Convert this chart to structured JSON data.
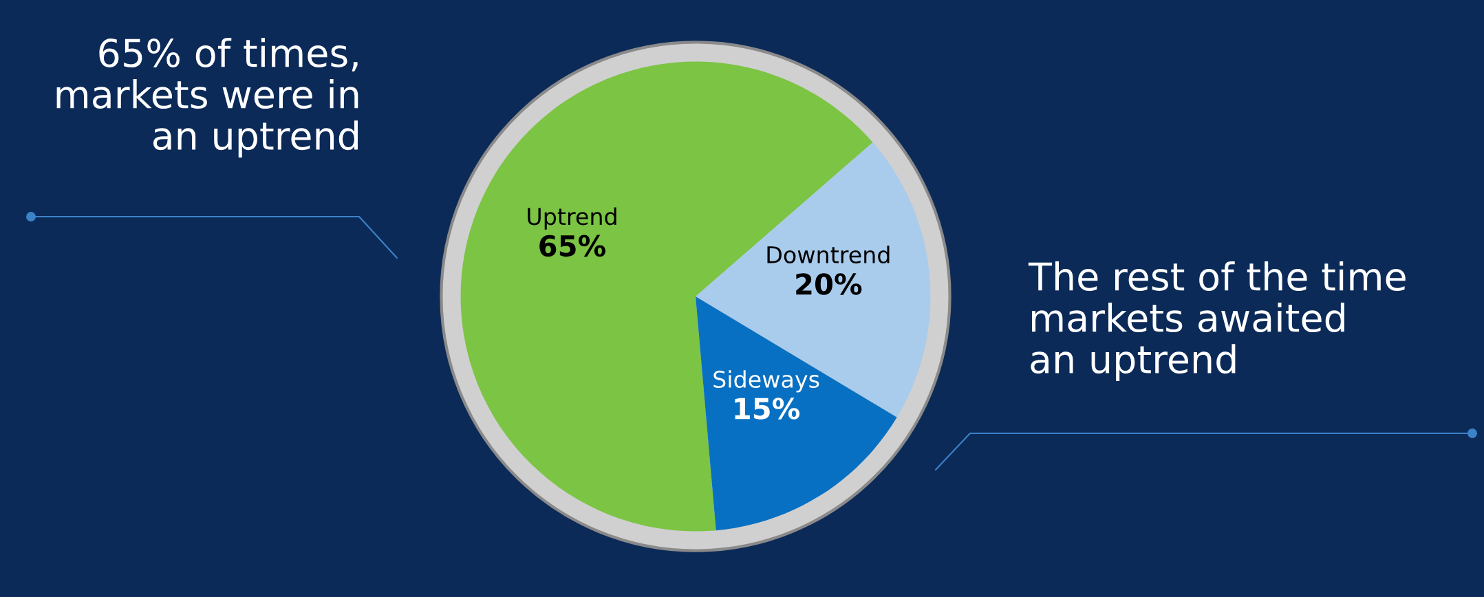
{
  "chart_data": {
    "type": "pie",
    "categories": [
      "Uptrend",
      "Downtrend",
      "Sideways"
    ],
    "values": [
      65,
      20,
      15
    ],
    "colors": [
      "#7cc444",
      "#a9cbec",
      "#0870c2"
    ],
    "value_labels": [
      "65%",
      "20%",
      "15%"
    ],
    "annotations": [
      "65% of times,\nmarkets were in\nan uptrend",
      "The rest of the time\nmarkets awaited\nan uptrend"
    ]
  }
}
